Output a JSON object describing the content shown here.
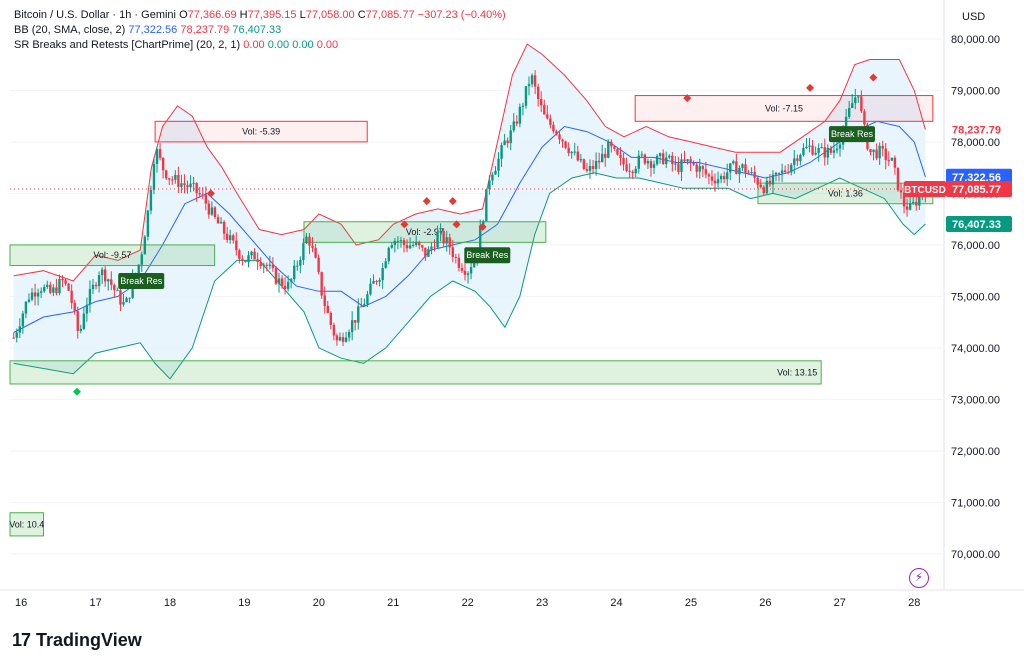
{
  "legend": {
    "symbol": "Bitcoin / U.S. Dollar · 1h · Gemini",
    "open_label": "O",
    "open": "77,366.69",
    "high_label": "H",
    "high": "77,395.15",
    "low_label": "L",
    "low": "77,058.00",
    "close_label": "C",
    "close": "77,085.77",
    "change": "−307.23 (−0.40%)",
    "bb_label": "BB (20, SMA, close, 2)",
    "bb_basis": "77,322.56",
    "bb_upper": "78,237.79",
    "bb_lower": "76,407.33",
    "sr_label": "SR Breaks and Retests [ChartPrime] (20, 2, 1)",
    "sr_vals": [
      "0.00",
      "0.00",
      "0.00",
      "0.00"
    ]
  },
  "currency": "USD",
  "brand": {
    "logo": "17",
    "name": "TradingView"
  },
  "colors": {
    "up": "#089981",
    "down": "#f23645",
    "basis": "#2962ff",
    "bb_fill": "#e3f2fd"
  },
  "chart_data": {
    "type": "candlestick",
    "ylim": [
      69300,
      80600
    ],
    "yticks": [
      "80,000.00",
      "79,000.00",
      "78,000.00",
      "77,000.00",
      "76,000.00",
      "75,000.00",
      "74,000.00",
      "73,000.00",
      "72,000.00",
      "71,000.00",
      "70,000.00"
    ],
    "ytick_values": [
      80000,
      79000,
      78000,
      77000,
      76000,
      75000,
      74000,
      73000,
      72000,
      71000,
      70000
    ],
    "xticks": [
      "16",
      "17",
      "18",
      "19",
      "20",
      "21",
      "22",
      "23",
      "24",
      "25",
      "26",
      "27",
      "28"
    ],
    "xtick_days": [
      16,
      17,
      18,
      19,
      20,
      21,
      22,
      23,
      24,
      25,
      26,
      27,
      28
    ],
    "xlim": [
      15.85,
      28.4
    ],
    "close_path": [
      [
        15.9,
        74200
      ],
      [
        16.0,
        74600
      ],
      [
        16.1,
        75000
      ],
      [
        16.25,
        75200
      ],
      [
        16.4,
        75050
      ],
      [
        16.55,
        75300
      ],
      [
        16.65,
        75100
      ],
      [
        16.72,
        74600
      ],
      [
        16.78,
        74200
      ],
      [
        16.85,
        74800
      ],
      [
        16.95,
        75100
      ],
      [
        17.05,
        75500
      ],
      [
        17.15,
        75400
      ],
      [
        17.3,
        75000
      ],
      [
        17.4,
        74800
      ],
      [
        17.5,
        75300
      ],
      [
        17.6,
        75700
      ],
      [
        17.7,
        76600
      ],
      [
        17.8,
        77900
      ],
      [
        17.9,
        77500
      ],
      [
        18.0,
        77300
      ],
      [
        18.15,
        77200
      ],
      [
        18.3,
        77100
      ],
      [
        18.45,
        76900
      ],
      [
        18.6,
        76500
      ],
      [
        18.75,
        76200
      ],
      [
        18.9,
        75900
      ],
      [
        19.0,
        75700
      ],
      [
        19.15,
        75800
      ],
      [
        19.3,
        75600
      ],
      [
        19.45,
        75300
      ],
      [
        19.6,
        75200
      ],
      [
        19.75,
        75800
      ],
      [
        19.85,
        76200
      ],
      [
        19.95,
        75700
      ],
      [
        20.05,
        75000
      ],
      [
        20.15,
        74500
      ],
      [
        20.25,
        74100
      ],
      [
        20.35,
        74300
      ],
      [
        20.5,
        74600
      ],
      [
        20.65,
        75000
      ],
      [
        20.75,
        75300
      ],
      [
        20.85,
        75500
      ],
      [
        20.95,
        76100
      ],
      [
        21.05,
        76100
      ],
      [
        21.15,
        76000
      ],
      [
        21.3,
        76000
      ],
      [
        21.45,
        75800
      ],
      [
        21.6,
        76200
      ],
      [
        21.75,
        76000
      ],
      [
        21.85,
        75700
      ],
      [
        22.0,
        75500
      ],
      [
        22.1,
        75800
      ],
      [
        22.2,
        76500
      ],
      [
        22.3,
        77400
      ],
      [
        22.4,
        77600
      ],
      [
        22.5,
        78000
      ],
      [
        22.6,
        78200
      ],
      [
        22.75,
        78800
      ],
      [
        22.85,
        79300
      ],
      [
        22.95,
        78800
      ],
      [
        23.05,
        78400
      ],
      [
        23.15,
        78300
      ],
      [
        23.3,
        78000
      ],
      [
        23.45,
        77700
      ],
      [
        23.6,
        77400
      ],
      [
        23.75,
        77600
      ],
      [
        23.9,
        77900
      ],
      [
        24.05,
        77600
      ],
      [
        24.2,
        77500
      ],
      [
        24.35,
        77700
      ],
      [
        24.5,
        77600
      ],
      [
        24.65,
        77700
      ],
      [
        24.8,
        77500
      ],
      [
        24.95,
        77600
      ],
      [
        25.1,
        77500
      ],
      [
        25.25,
        77300
      ],
      [
        25.4,
        77300
      ],
      [
        25.55,
        77500
      ],
      [
        25.7,
        77500
      ],
      [
        25.85,
        77300
      ],
      [
        26.0,
        77100
      ],
      [
        26.15,
        77300
      ],
      [
        26.3,
        77500
      ],
      [
        26.45,
        77800
      ],
      [
        26.6,
        77900
      ],
      [
        26.75,
        77800
      ],
      [
        26.9,
        77800
      ],
      [
        27.05,
        78200
      ],
      [
        27.15,
        78700
      ],
      [
        27.25,
        79000
      ],
      [
        27.3,
        78400
      ],
      [
        27.4,
        77800
      ],
      [
        27.55,
        77800
      ],
      [
        27.7,
        77600
      ],
      [
        27.85,
        76800
      ],
      [
        27.95,
        76700
      ],
      [
        28.05,
        76900
      ],
      [
        28.15,
        77100
      ]
    ],
    "bb_upper_path": [
      [
        15.9,
        75400
      ],
      [
        16.3,
        75500
      ],
      [
        16.7,
        75300
      ],
      [
        17.0,
        75800
      ],
      [
        17.3,
        75700
      ],
      [
        17.6,
        75900
      ],
      [
        17.75,
        77500
      ],
      [
        17.9,
        78300
      ],
      [
        18.1,
        78700
      ],
      [
        18.3,
        78500
      ],
      [
        18.5,
        77900
      ],
      [
        18.7,
        77500
      ],
      [
        18.9,
        77000
      ],
      [
        19.2,
        76300
      ],
      [
        19.5,
        76200
      ],
      [
        19.8,
        76300
      ],
      [
        20.0,
        76600
      ],
      [
        20.3,
        76400
      ],
      [
        20.5,
        76000
      ],
      [
        20.8,
        76100
      ],
      [
        21.0,
        76400
      ],
      [
        21.3,
        76600
      ],
      [
        21.6,
        76700
      ],
      [
        21.9,
        76600
      ],
      [
        22.2,
        76700
      ],
      [
        22.4,
        78000
      ],
      [
        22.6,
        79300
      ],
      [
        22.8,
        79900
      ],
      [
        23.0,
        79700
      ],
      [
        23.3,
        79300
      ],
      [
        23.6,
        78800
      ],
      [
        23.85,
        78300
      ],
      [
        24.1,
        78100
      ],
      [
        24.4,
        78300
      ],
      [
        24.7,
        78100
      ],
      [
        25.0,
        78000
      ],
      [
        25.3,
        77900
      ],
      [
        25.6,
        77800
      ],
      [
        25.9,
        77800
      ],
      [
        26.2,
        77800
      ],
      [
        26.5,
        78100
      ],
      [
        26.8,
        78400
      ],
      [
        27.0,
        78800
      ],
      [
        27.2,
        79500
      ],
      [
        27.4,
        79600
      ],
      [
        27.6,
        79600
      ],
      [
        27.8,
        79600
      ],
      [
        28.0,
        79000
      ],
      [
        28.15,
        78240
      ]
    ],
    "bb_basis_path": [
      [
        15.9,
        74300
      ],
      [
        16.3,
        74600
      ],
      [
        16.7,
        74700
      ],
      [
        17.0,
        74900
      ],
      [
        17.3,
        75000
      ],
      [
        17.6,
        75300
      ],
      [
        17.9,
        76000
      ],
      [
        18.2,
        76800
      ],
      [
        18.5,
        77000
      ],
      [
        18.8,
        76600
      ],
      [
        19.1,
        76100
      ],
      [
        19.4,
        75600
      ],
      [
        19.7,
        75200
      ],
      [
        20.0,
        75100
      ],
      [
        20.3,
        75100
      ],
      [
        20.6,
        74800
      ],
      [
        20.9,
        75000
      ],
      [
        21.2,
        75400
      ],
      [
        21.5,
        75900
      ],
      [
        21.8,
        76000
      ],
      [
        22.1,
        76100
      ],
      [
        22.4,
        76400
      ],
      [
        22.7,
        77200
      ],
      [
        23.0,
        77900
      ],
      [
        23.3,
        78300
      ],
      [
        23.6,
        78200
      ],
      [
        23.9,
        78000
      ],
      [
        24.2,
        77700
      ],
      [
        24.5,
        77700
      ],
      [
        24.8,
        77600
      ],
      [
        25.1,
        77600
      ],
      [
        25.4,
        77500
      ],
      [
        25.7,
        77400
      ],
      [
        26.0,
        77300
      ],
      [
        26.3,
        77400
      ],
      [
        26.6,
        77600
      ],
      [
        26.9,
        77900
      ],
      [
        27.2,
        78200
      ],
      [
        27.5,
        78400
      ],
      [
        27.8,
        78300
      ],
      [
        28.0,
        78000
      ],
      [
        28.15,
        77320
      ]
    ],
    "bb_lower_path": [
      [
        15.9,
        73700
      ],
      [
        16.3,
        73600
      ],
      [
        16.7,
        73500
      ],
      [
        17.0,
        73900
      ],
      [
        17.3,
        74000
      ],
      [
        17.6,
        74100
      ],
      [
        17.8,
        73700
      ],
      [
        18.0,
        73400
      ],
      [
        18.3,
        74000
      ],
      [
        18.6,
        75300
      ],
      [
        18.9,
        75700
      ],
      [
        19.2,
        75700
      ],
      [
        19.5,
        75200
      ],
      [
        19.8,
        74700
      ],
      [
        20.0,
        74000
      ],
      [
        20.3,
        73800
      ],
      [
        20.6,
        73700
      ],
      [
        20.9,
        74000
      ],
      [
        21.2,
        74500
      ],
      [
        21.5,
        75000
      ],
      [
        21.8,
        75300
      ],
      [
        22.1,
        75100
      ],
      [
        22.3,
        74800
      ],
      [
        22.5,
        74400
      ],
      [
        22.7,
        75000
      ],
      [
        22.9,
        76200
      ],
      [
        23.1,
        77000
      ],
      [
        23.4,
        77300
      ],
      [
        23.7,
        77400
      ],
      [
        24.0,
        77300
      ],
      [
        24.3,
        77300
      ],
      [
        24.6,
        77200
      ],
      [
        24.9,
        77100
      ],
      [
        25.2,
        77100
      ],
      [
        25.5,
        77100
      ],
      [
        25.8,
        76900
      ],
      [
        26.1,
        77000
      ],
      [
        26.4,
        76900
      ],
      [
        26.7,
        77100
      ],
      [
        27.0,
        77300
      ],
      [
        27.3,
        77100
      ],
      [
        27.6,
        76900
      ],
      [
        27.85,
        76400
      ],
      [
        28.0,
        76200
      ],
      [
        28.15,
        76407
      ]
    ],
    "sr_boxes": [
      {
        "kind": "resistance",
        "x0": 17.8,
        "x1": 20.65,
        "y0": 78000,
        "y1": 78400,
        "label": "Vol: -5.39"
      },
      {
        "kind": "support",
        "x0": 15.85,
        "x1": 18.6,
        "y0": 75600,
        "y1": 76000,
        "label": "Vol: -9.57"
      },
      {
        "kind": "support",
        "x0": 19.8,
        "x1": 23.05,
        "y0": 76050,
        "y1": 76450,
        "label": "Vol: -2.97"
      },
      {
        "kind": "support",
        "x0": 15.85,
        "x1": 26.75,
        "y0": 73300,
        "y1": 73750,
        "label": "Vol: 13.15"
      },
      {
        "kind": "resistance",
        "x0": 24.25,
        "x1": 28.25,
        "y0": 78400,
        "y1": 78900,
        "label": "Vol: -7.15"
      },
      {
        "kind": "support",
        "x0": 25.9,
        "x1": 28.25,
        "y0": 76800,
        "y1": 77200,
        "label": "Vol: 1.36"
      },
      {
        "kind": "support",
        "x0": 15.85,
        "x1": 16.3,
        "y0": 70350,
        "y1": 70800,
        "label": "Vol: 10.4"
      }
    ],
    "break_labels": [
      {
        "x": 17.6,
        "y": 75300,
        "label": "Break Res"
      },
      {
        "x": 22.25,
        "y": 75800,
        "label": "Break Res"
      },
      {
        "x": 27.15,
        "y": 78150,
        "label": "Break Res"
      }
    ],
    "markers": [
      {
        "x": 18.55,
        "y": 77000,
        "kind": "down"
      },
      {
        "x": 21.15,
        "y": 76400,
        "kind": "down"
      },
      {
        "x": 21.45,
        "y": 76850,
        "kind": "down"
      },
      {
        "x": 21.8,
        "y": 76850,
        "kind": "down"
      },
      {
        "x": 21.85,
        "y": 76400,
        "kind": "down"
      },
      {
        "x": 22.2,
        "y": 76350,
        "kind": "down"
      },
      {
        "x": 24.95,
        "y": 78850,
        "kind": "down"
      },
      {
        "x": 26.6,
        "y": 79050,
        "kind": "down"
      },
      {
        "x": 27.45,
        "y": 79250,
        "kind": "down"
      },
      {
        "x": 16.75,
        "y": 73150,
        "kind": "up"
      }
    ],
    "price_labels": [
      {
        "value": 78237.79,
        "text": "78,237.79",
        "kind": "upper"
      },
      {
        "value": 77322.56,
        "text": "77,322.56",
        "kind": "basis"
      },
      {
        "value": 77085.77,
        "text": "77,085.77",
        "kind": "last",
        "tag": "BTCUSD"
      },
      {
        "value": 76407.33,
        "text": "76,407.33",
        "kind": "lower"
      }
    ]
  }
}
